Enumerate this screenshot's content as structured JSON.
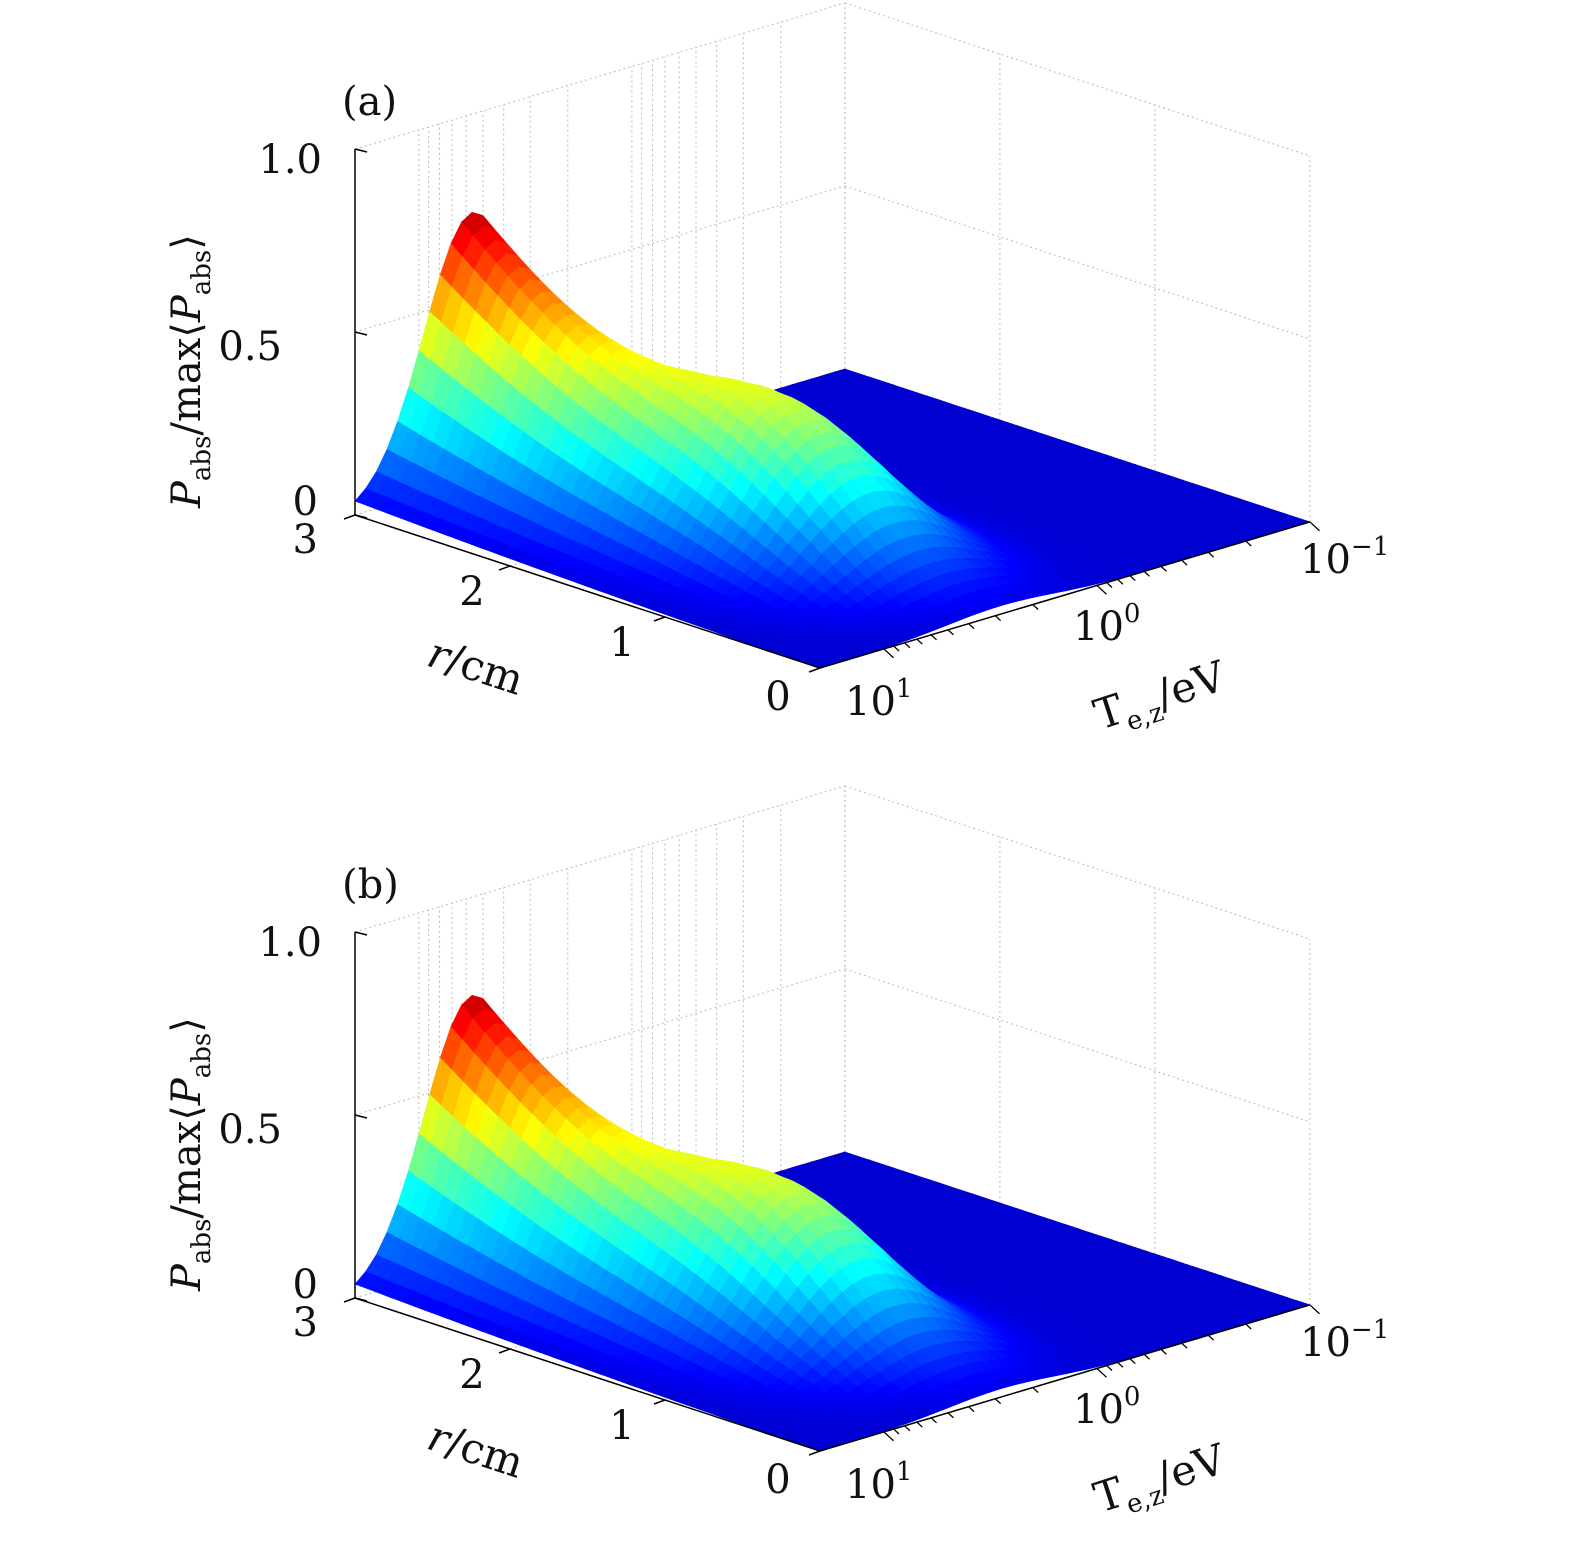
{
  "chart_data": [
    {
      "type": "surface3d",
      "panel_label": "(a)",
      "zlabel_main": "P",
      "zlabel_sub": "abs",
      "zlabel_mid": "/max⟨",
      "zlabel_main2": "P",
      "zlabel_sub2": "abs",
      "zlabel_end": "⟩",
      "xlabel_main": "r",
      "xlabel_rest": "/cm",
      "ylabel_main": "T",
      "ylabel_sub": "e,z",
      "ylabel_rest": "/eV",
      "z_ticks": [
        "0",
        "0.5",
        "1.0"
      ],
      "r_ticks": [
        "3",
        "2",
        "1",
        "0"
      ],
      "t_ticks": [
        {
          "base": "10",
          "exp": "1"
        },
        {
          "base": "10",
          "exp": "0"
        },
        {
          "base": "10",
          "exp": "−1"
        }
      ],
      "xlim": [
        0,
        3
      ],
      "ylim_log10": [
        -1,
        1.3
      ],
      "zlim": [
        0,
        1.0
      ],
      "peak_value": 0.73,
      "peak_r": 3.0,
      "peak_log10_T": 0.75,
      "colormap": "jet",
      "back_grid": true
    },
    {
      "type": "surface3d",
      "panel_label": "(b)",
      "zlabel_main": "P",
      "zlabel_sub": "abs",
      "zlabel_mid": "/max⟨",
      "zlabel_main2": "P",
      "zlabel_sub2": "abs",
      "zlabel_end": "⟩",
      "xlabel_main": "r",
      "xlabel_rest": "/cm",
      "ylabel_main": "T",
      "ylabel_sub": "e,z",
      "ylabel_rest": "/eV",
      "z_ticks": [
        "0",
        "0.5",
        "1.0"
      ],
      "r_ticks": [
        "3",
        "2",
        "1",
        "0"
      ],
      "t_ticks": [
        {
          "base": "10",
          "exp": "1"
        },
        {
          "base": "10",
          "exp": "0"
        },
        {
          "base": "10",
          "exp": "−1"
        }
      ],
      "xlim": [
        0,
        3
      ],
      "ylim_log10": [
        -1,
        1.3
      ],
      "zlim": [
        0,
        1.0
      ],
      "peak_value": 0.73,
      "peak_r": 3.0,
      "peak_log10_T": 0.75,
      "colormap": "jet",
      "back_grid": true
    }
  ]
}
